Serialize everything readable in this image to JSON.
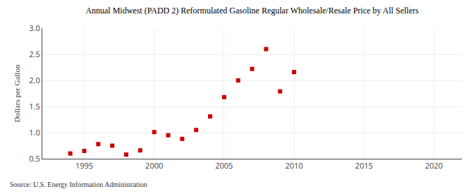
{
  "chart_data": {
    "type": "scatter",
    "title": "Annual Midwest (PADD 2) Reformulated Gasoline Regular Wholesale/Resale Price by All Sellers",
    "ylabel": "Dollars per Gallon",
    "source": "Source: U.S. Energy Information Administration",
    "x": [
      1994,
      1995,
      1996,
      1997,
      1998,
      1999,
      2000,
      2001,
      2002,
      2003,
      2004,
      2005,
      2006,
      2007,
      2008,
      2009,
      2010
    ],
    "values": [
      0.6,
      0.65,
      0.78,
      0.75,
      0.58,
      0.66,
      1.01,
      0.95,
      0.88,
      1.05,
      1.31,
      1.68,
      2.0,
      2.22,
      2.6,
      1.79,
      2.16
    ],
    "color": "#cc0000",
    "marker": "square",
    "xlim": [
      1992,
      2022
    ],
    "xticks": [
      1995,
      2000,
      2005,
      2010,
      2015,
      2020
    ],
    "ylim": [
      0.5,
      3.0
    ],
    "yticks": [
      0.5,
      {
        "value": 1.0,
        "label": "1.0"
      },
      1.5,
      {
        "value": 2.0,
        "label": "2.0"
      },
      2.5,
      {
        "value": 3.0,
        "label": "3.0"
      }
    ],
    "grid": true
  }
}
